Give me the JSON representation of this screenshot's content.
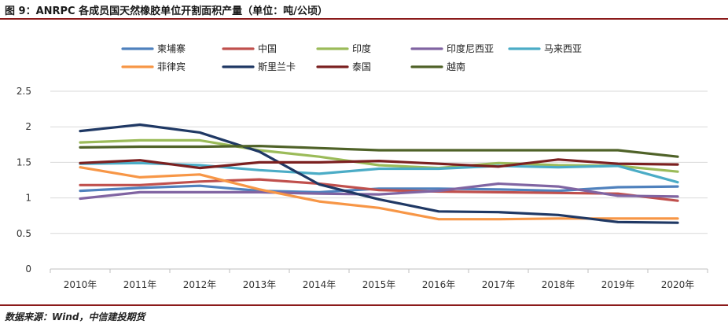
{
  "figure": {
    "title": "图 9：ANRPC 各成员国天然橡胶单位开割面积产量（单位：吨/公顷）",
    "source": "数据来源：Wind，中信建投期货"
  },
  "chart_data": {
    "type": "line",
    "x": [
      "2010年",
      "2011年",
      "2012年",
      "2013年",
      "2014年",
      "2015年",
      "2016年",
      "2017年",
      "2018年",
      "2019年",
      "2020年"
    ],
    "ylim": [
      0,
      2.5
    ],
    "yticks": [
      "0",
      "0.5",
      "1",
      "1.5",
      "2",
      "2.5"
    ],
    "yticks_values": [
      0,
      0.5,
      1,
      1.5,
      2,
      2.5
    ],
    "grid": true,
    "legend_position": "top",
    "series": [
      {
        "name": "柬埔寨",
        "color": "#4f81bd",
        "values": [
          1.1,
          1.14,
          1.17,
          1.1,
          1.08,
          1.13,
          1.13,
          1.12,
          1.1,
          1.15,
          1.16
        ]
      },
      {
        "name": "中国",
        "color": "#c0504d",
        "values": [
          1.18,
          1.18,
          1.23,
          1.26,
          1.2,
          1.11,
          1.09,
          1.08,
          1.07,
          1.06,
          0.96
        ]
      },
      {
        "name": "印度",
        "color": "#9bbb59",
        "values": [
          1.78,
          1.81,
          1.81,
          1.67,
          1.58,
          1.46,
          1.42,
          1.49,
          1.46,
          1.45,
          1.37
        ]
      },
      {
        "name": "印度尼西亚",
        "color": "#8064a2",
        "values": [
          0.99,
          1.08,
          1.08,
          1.08,
          1.06,
          1.05,
          1.1,
          1.2,
          1.16,
          1.03,
          1.02
        ]
      },
      {
        "name": "马来西亚",
        "color": "#4bacc6",
        "values": [
          1.48,
          1.49,
          1.46,
          1.39,
          1.34,
          1.41,
          1.41,
          1.45,
          1.43,
          1.45,
          1.22
        ]
      },
      {
        "name": "菲律宾",
        "color": "#f79646",
        "values": [
          1.43,
          1.29,
          1.33,
          1.12,
          0.95,
          0.86,
          0.7,
          0.7,
          0.71,
          0.71,
          0.71
        ]
      },
      {
        "name": "斯里兰卡",
        "color": "#1f3864",
        "values": [
          1.94,
          2.03,
          1.92,
          1.65,
          1.19,
          0.98,
          0.81,
          0.8,
          0.76,
          0.66,
          0.65
        ]
      },
      {
        "name": "泰国",
        "color": "#7b2020",
        "values": [
          1.49,
          1.53,
          1.42,
          1.5,
          1.5,
          1.52,
          1.48,
          1.44,
          1.54,
          1.48,
          1.47
        ]
      },
      {
        "name": "越南",
        "color": "#4f6228",
        "values": [
          1.71,
          1.72,
          1.72,
          1.73,
          1.7,
          1.67,
          1.67,
          1.67,
          1.67,
          1.67,
          1.58
        ]
      }
    ]
  }
}
